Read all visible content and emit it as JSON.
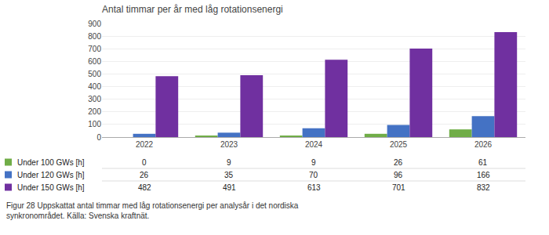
{
  "chart_data": {
    "type": "bar",
    "title": "Antal timmar per år med låg rotationsenergi",
    "categories": [
      "2022",
      "2023",
      "2024",
      "2025",
      "2026"
    ],
    "series": [
      {
        "name": "Under 100 GWs [h]",
        "color": "#70ad47",
        "values": [
          0,
          9,
          9,
          26,
          61
        ]
      },
      {
        "name": "Under 120 GWs [h]",
        "color": "#4472c4",
        "values": [
          26,
          35,
          70,
          96,
          166
        ]
      },
      {
        "name": "Under 150 GWs [h]",
        "color": "#7030a0",
        "values": [
          482,
          491,
          613,
          701,
          832
        ]
      }
    ],
    "ylim": [
      0,
      900
    ],
    "yticks": [
      0,
      100,
      200,
      300,
      400,
      500,
      600,
      700,
      800,
      900
    ],
    "grid": true,
    "annotations": [
      "Figur 28 Uppskattat antal timmar med låg rotationsenergi per analysår i det nordiska\nsynkronområdet. Källa: Svenska kraftnät."
    ]
  }
}
